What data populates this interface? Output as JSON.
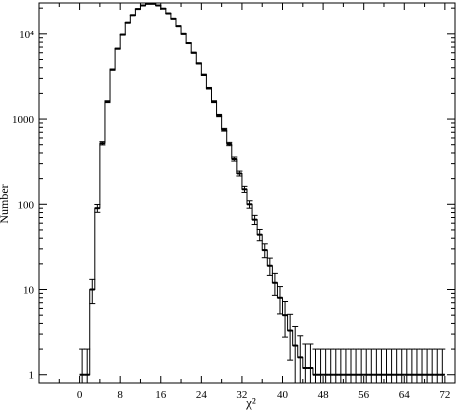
{
  "chart_data": {
    "type": "histogram",
    "xlabel": "χ²",
    "ylabel": "Number",
    "x_scale": "linear",
    "y_scale": "log",
    "xlim": [
      -8,
      74
    ],
    "ylim": [
      0.8,
      23000
    ],
    "x_ticks": [
      0,
      8,
      16,
      24,
      32,
      40,
      48,
      56,
      64,
      72
    ],
    "y_ticks": [
      {
        "value": 1,
        "label": "1"
      },
      {
        "value": 10,
        "label": "10"
      },
      {
        "value": 100,
        "label": "100"
      },
      {
        "value": 1000,
        "label": "1000"
      },
      {
        "value": 10000,
        "label": "10⁴"
      }
    ],
    "grid": false,
    "bin_width": 1,
    "series": [
      {
        "x": [
          0,
          1,
          2,
          3,
          4,
          5,
          6,
          7,
          8,
          9,
          10,
          11,
          12,
          13,
          14,
          15,
          16,
          17,
          18,
          19,
          20,
          21,
          22,
          23,
          24,
          25,
          26,
          27,
          28,
          29,
          30,
          31,
          32,
          33,
          34,
          35,
          36,
          37,
          38,
          39,
          40,
          41,
          42,
          43,
          44,
          45,
          46,
          47,
          48,
          49,
          50,
          51,
          52,
          53,
          54,
          55,
          56,
          57,
          58,
          59,
          60,
          61,
          62,
          63,
          64,
          65,
          66,
          67,
          68,
          69,
          70,
          71
        ],
        "values": [
          1,
          1,
          10,
          90,
          520,
          1600,
          3800,
          6700,
          9800,
          13500,
          16500,
          19500,
          21500,
          22500,
          22500,
          21500,
          19700,
          17300,
          15000,
          12300,
          10000,
          7800,
          6000,
          4500,
          3300,
          2300,
          1600,
          1100,
          750,
          510,
          340,
          230,
          150,
          100,
          66,
          44,
          29,
          19,
          12,
          8,
          5,
          3.3,
          2.2,
          1.6,
          1.2,
          1.2,
          1,
          1,
          1,
          1,
          1,
          1,
          1,
          1,
          1,
          1,
          1,
          1,
          1,
          1,
          1,
          1,
          1,
          1,
          1,
          1,
          1,
          1,
          1,
          1,
          1,
          1
        ]
      }
    ]
  }
}
